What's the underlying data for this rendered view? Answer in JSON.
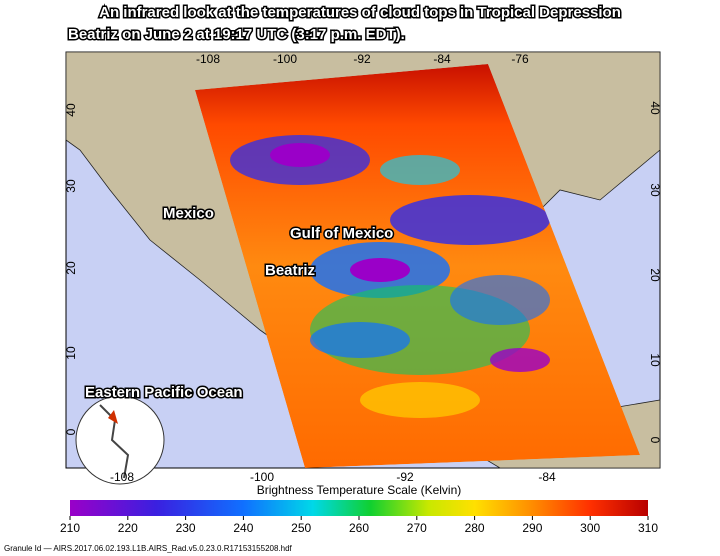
{
  "title_lines": [
    "An infrared look at the temperatures of cloud tops in Tropical Depression",
    "Beatriz on June 2 at 19:17 UTC (3:17 p.m. EDT)."
  ],
  "labels": {
    "mexico": "Mexico",
    "gulf": "Gulf of Mexico",
    "storm": "Beatriz",
    "ocean": "Eastern Pacific Ocean"
  },
  "map": {
    "top_ticks": [
      -108,
      -100,
      -92,
      -84,
      -76
    ],
    "bottom_ticks": [
      -108,
      -100,
      -92,
      -84
    ],
    "left_ticks": [
      40,
      30,
      20,
      10,
      0
    ],
    "right_ticks": [
      40,
      30,
      20,
      10,
      0
    ]
  },
  "colorbar": {
    "title": "Brightness Temperature Scale (Kelvin)",
    "ticks": [
      210,
      220,
      230,
      240,
      250,
      260,
      270,
      280,
      290,
      300,
      310
    ]
  },
  "footer": "Granule Id — AIRS.2017.06.02.193.L1B.AIRS_Rad.v5.0.23.0.R17153155208.hdf"
}
